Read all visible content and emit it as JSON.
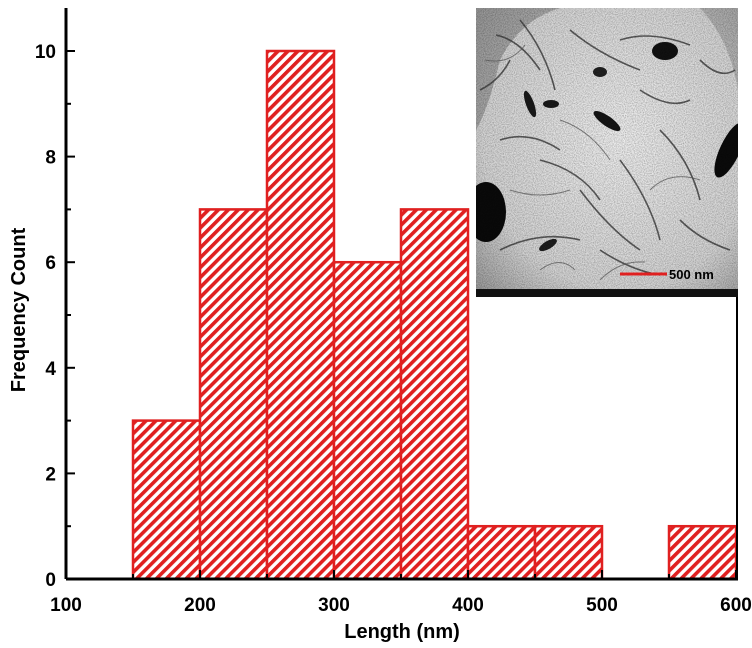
{
  "chart_data": {
    "type": "bar",
    "bins": [
      {
        "start": 150,
        "end": 200,
        "count": 3
      },
      {
        "start": 200,
        "end": 250,
        "count": 7
      },
      {
        "start": 250,
        "end": 300,
        "count": 10
      },
      {
        "start": 300,
        "end": 350,
        "count": 6
      },
      {
        "start": 350,
        "end": 400,
        "count": 7
      },
      {
        "start": 400,
        "end": 450,
        "count": 1
      },
      {
        "start": 450,
        "end": 500,
        "count": 1
      },
      {
        "start": 550,
        "end": 600,
        "count": 1
      }
    ],
    "xlabel": "Length (nm)",
    "ylabel": "Frequency Count",
    "xlim": [
      100,
      600
    ],
    "ylim": [
      0,
      11
    ],
    "xticks": [
      100,
      200,
      300,
      400,
      500,
      600
    ],
    "yticks": [
      0,
      2,
      4,
      6,
      8,
      10
    ],
    "grid": false,
    "bar_color": "#e02020",
    "inset": {
      "description": "TEM micrograph inset",
      "scale_bar_label": "500 nm",
      "scale_bar_color": "#e02020"
    }
  }
}
